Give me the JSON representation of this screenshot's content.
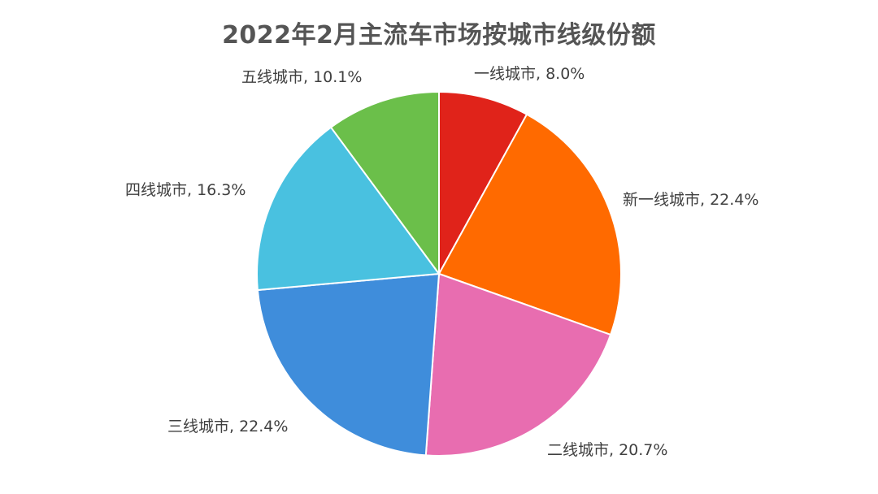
{
  "chart_data": {
    "type": "pie",
    "title": "2022年2月主流车市场按城市线级份额",
    "slices": [
      {
        "name": "一线城市",
        "value": 8.0,
        "label": "一线城市, 8.0%",
        "color": "#e0231a"
      },
      {
        "name": "新一线城市",
        "value": 22.4,
        "label": "新一线城市, 22.4%",
        "color": "#ff6a00"
      },
      {
        "name": "二线城市",
        "value": 20.7,
        "label": "二线城市, 20.7%",
        "color": "#e86db0"
      },
      {
        "name": "三线城市",
        "value": 22.4,
        "label": "三线城市, 22.4%",
        "color": "#3f8ddb"
      },
      {
        "name": "四线城市",
        "value": 16.3,
        "label": "四线城市, 16.3%",
        "color": "#49c1e0"
      },
      {
        "name": "五线城市",
        "value": 10.1,
        "label": "五线城市, 10.1%",
        "color": "#6bbf4a"
      }
    ],
    "start_angle": "12 o'clock",
    "direction": "clockwise",
    "legend": "none",
    "data_labels": "outside"
  }
}
